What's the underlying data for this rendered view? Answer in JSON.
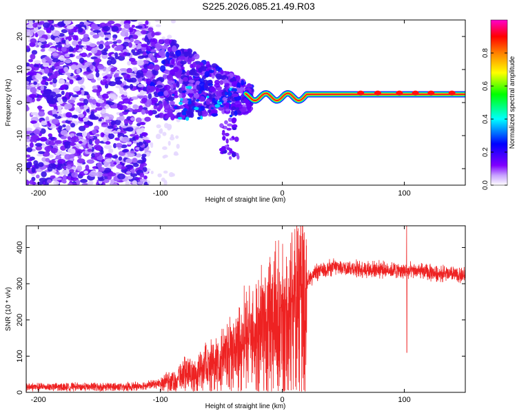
{
  "title": "S225.2026.085.21.49.R03",
  "chart_data": [
    {
      "type": "heatmap",
      "xlabel": "Height of straight line (km)",
      "ylabel": "Frequency (Hz)",
      "xlim": [
        -210,
        150
      ],
      "ylim": [
        -25,
        25
      ],
      "xticks": [
        -200,
        -100,
        0,
        100
      ],
      "yticks": [
        -20,
        -10,
        0,
        10,
        20
      ],
      "colorbar": {
        "label": "Normalized spectral amplitude",
        "range": [
          0.0,
          1.0
        ],
        "ticks": [
          0.0,
          0.2,
          0.4,
          0.6,
          0.8
        ],
        "tick_labels": [
          "0.0",
          "0.2",
          "0.4",
          "0.6",
          "0.8"
        ],
        "colors": [
          "#ffffff",
          "#8000ff",
          "#0000ff",
          "#00ffff",
          "#00ff00",
          "#ffff00",
          "#ff8000",
          "#ff0000",
          "#ff00cc"
        ]
      },
      "features": [
        {
          "name": "noise-region",
          "x_range": [
            -210,
            -110
          ],
          "freq_range": [
            -25,
            25
          ],
          "amplitude": "low, scattered"
        },
        {
          "name": "transition-region",
          "x_range": [
            -110,
            -30
          ],
          "freq_range": [
            -15,
            15
          ],
          "amplitude": "rising"
        },
        {
          "name": "carrier-line",
          "x_range": [
            -30,
            150
          ],
          "freq_hz": 2.5,
          "amplitude": 1.0
        }
      ]
    },
    {
      "type": "line",
      "xlabel": "Height of straight line (km)",
      "ylabel": "SNR (10 * v/v)",
      "xlim": [
        -210,
        150
      ],
      "ylim": [
        0,
        460
      ],
      "xticks": [
        -200,
        -100,
        0,
        100
      ],
      "yticks": [
        0,
        100,
        200,
        300,
        400
      ],
      "color": "#ee2222",
      "series": [
        {
          "name": "SNR",
          "x": [
            -210,
            -180,
            -150,
            -120,
            -100,
            -90,
            -80,
            -70,
            -60,
            -50,
            -40,
            -30,
            -20,
            -10,
            0,
            10,
            20,
            30,
            40,
            50,
            60,
            70,
            80,
            90,
            100,
            110,
            120,
            130,
            140,
            150
          ],
          "values": [
            15,
            15,
            15,
            16,
            25,
            40,
            55,
            70,
            85,
            100,
            130,
            165,
            200,
            235,
            260,
            285,
            310,
            335,
            345,
            345,
            342,
            340,
            340,
            338,
            335,
            335,
            330,
            328,
            325,
            322
          ]
        }
      ],
      "annotations": [
        {
          "x": 102,
          "y": 460,
          "note": "spike"
        },
        {
          "x": 102,
          "y": 110,
          "note": "dropout"
        }
      ]
    }
  ]
}
